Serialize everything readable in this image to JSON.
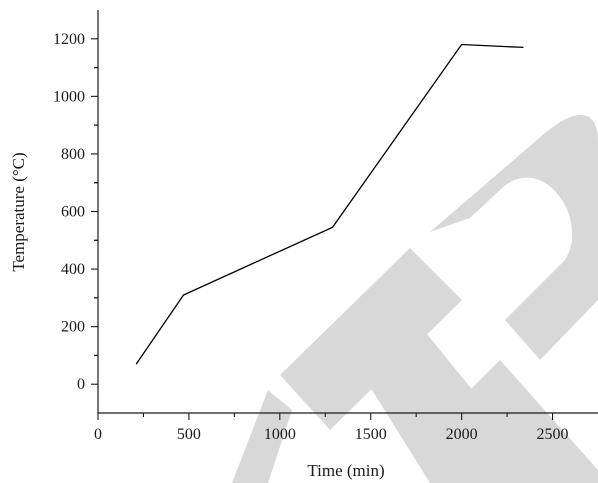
{
  "chart_data": {
    "type": "line",
    "xlabel": "Time (min)",
    "ylabel": "Temperature (°C)",
    "xlim": [
      0,
      2750
    ],
    "ylim": [
      -100,
      1300
    ],
    "xticks": [
      0,
      500,
      1000,
      1500,
      2000,
      2500
    ],
    "yticks": [
      0,
      200,
      400,
      600,
      800,
      1000,
      1200
    ],
    "x_tick_labels": [
      "0",
      "500",
      "1000",
      "1500",
      "2000",
      "2500"
    ],
    "y_tick_labels": [
      "0",
      "200",
      "400",
      "600",
      "800",
      "1000",
      "1200"
    ],
    "grid": false,
    "series": [
      {
        "color": "#000000",
        "x": [
          210,
          470,
          1290,
          2000,
          2340
        ],
        "y": [
          70,
          310,
          545,
          1180,
          1170
        ]
      }
    ],
    "watermark": {
      "text": "ITR",
      "color": "#d6d6d6"
    }
  }
}
